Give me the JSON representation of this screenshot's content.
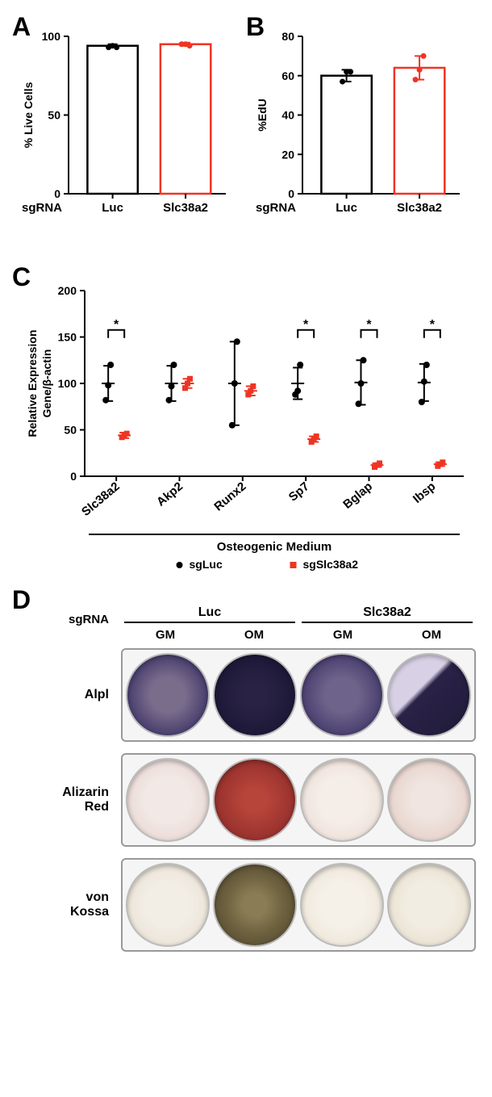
{
  "panelA": {
    "label": "A",
    "type": "bar",
    "ylabel": "% Live Cells",
    "ylim": [
      0,
      100
    ],
    "yticks": [
      0,
      50,
      100
    ],
    "categories": [
      "Luc",
      "Slc38a2"
    ],
    "xprefix": "sgRNA",
    "bars": [
      {
        "value": 94,
        "color": "#000000",
        "points": [
          93,
          94,
          93
        ],
        "err": 1
      },
      {
        "value": 95,
        "color": "#ee3524",
        "points": [
          95,
          95,
          94
        ],
        "err": 1
      }
    ],
    "bar_fill": "#ffffff",
    "tick_fontsize": 14,
    "label_fontsize": 16
  },
  "panelB": {
    "label": "B",
    "type": "bar",
    "ylabel": "%EdU",
    "ylim": [
      0,
      80
    ],
    "yticks": [
      0,
      20,
      40,
      60,
      80
    ],
    "categories": [
      "Luc",
      "Slc38a2"
    ],
    "xprefix": "sgRNA",
    "bars": [
      {
        "value": 60,
        "color": "#000000",
        "points": [
          57,
          62,
          62
        ],
        "err": 3
      },
      {
        "value": 64,
        "color": "#ee3524",
        "points": [
          58,
          63,
          70
        ],
        "err": 6
      }
    ],
    "bar_fill": "#ffffff",
    "tick_fontsize": 14,
    "label_fontsize": 16
  },
  "panelC": {
    "label": "C",
    "type": "scatter",
    "ylabel_line1": "Relative Expression",
    "ylabel_line2": "Gene/β-actin",
    "ylim": [
      0,
      200
    ],
    "yticks": [
      0,
      50,
      100,
      150,
      200
    ],
    "categories": [
      "Slc38a2",
      "Akp2",
      "Runx2",
      "Sp7",
      "Bglap",
      "Ibsp"
    ],
    "footer": "Osteogenic Medium",
    "legend": [
      {
        "label": "sgLuc",
        "marker": "circle",
        "color": "#000000"
      },
      {
        "label": "sgSlc38a2",
        "marker": "square",
        "color": "#ee3524"
      }
    ],
    "significance_pairs": [
      0,
      3,
      4,
      5
    ],
    "sig_symbol": "*",
    "data": [
      {
        "luc": {
          "points": [
            82,
            98,
            120
          ],
          "mean": 100,
          "err": 19
        },
        "slc": {
          "points": [
            42,
            44,
            46
          ],
          "mean": 44,
          "err": 3
        }
      },
      {
        "luc": {
          "points": [
            82,
            97,
            120
          ],
          "mean": 100,
          "err": 19
        },
        "slc": {
          "points": [
            95,
            100,
            105
          ],
          "mean": 100,
          "err": 5
        }
      },
      {
        "luc": {
          "points": [
            55,
            100,
            145
          ],
          "mean": 100,
          "err": 45
        },
        "slc": {
          "points": [
            88,
            92,
            97
          ],
          "mean": 92,
          "err": 5
        }
      },
      {
        "luc": {
          "points": [
            88,
            92,
            120
          ],
          "mean": 100,
          "err": 17
        },
        "slc": {
          "points": [
            37,
            40,
            43
          ],
          "mean": 40,
          "err": 3
        }
      },
      {
        "luc": {
          "points": [
            78,
            100,
            125
          ],
          "mean": 101,
          "err": 24
        },
        "slc": {
          "points": [
            10,
            12,
            14
          ],
          "mean": 12,
          "err": 2
        }
      },
      {
        "luc": {
          "points": [
            80,
            102,
            120
          ],
          "mean": 101,
          "err": 20
        },
        "slc": {
          "points": [
            11,
            13,
            15
          ],
          "mean": 13,
          "err": 2
        }
      }
    ]
  },
  "panelD": {
    "label": "D",
    "sgRNA_prefix": "sgRNA",
    "groups": [
      "Luc",
      "Slc38a2"
    ],
    "conditions": [
      "GM",
      "OM",
      "GM",
      "OM"
    ],
    "rows": [
      {
        "label": "Alpl",
        "wells": [
          "radial-gradient(circle, #7a6d8c 30%, #4a3f6e 70%, #2e2550 100%)",
          "radial-gradient(circle, #2a2245 20%, #1f1a3a 60%, #1a1530 100%)",
          "radial-gradient(circle, #6e638a 30%, #4a4070 70%, #332a55 100%)",
          "linear-gradient(135deg, #d8d0e5 0%, #d8d0e5 40%, #2a2248 45%, #1f1a38 100%)"
        ]
      },
      {
        "label": "Alizarin Red",
        "label_split": [
          "Alizarin",
          "Red"
        ],
        "wells": [
          "radial-gradient(circle, #f2e8e5 40%, #e8d8d5 80%, #d8c0bd 100%)",
          "radial-gradient(circle, #b8453a 20%, #9e3530 60%, #7a2520 100%)",
          "radial-gradient(circle, #f5ede8 40%, #ede0d8 80%, #e0cec5 100%)",
          "radial-gradient(circle, #f0e5e0 30%, #e8d5ce 70%, #c88a80 100%)"
        ]
      },
      {
        "label": "von Kossa",
        "label_split": [
          "von",
          "Kossa"
        ],
        "wells": [
          "radial-gradient(circle, #f2ede5 40%, #eae2d5 80%, #e0d5c5 100%)",
          "radial-gradient(circle, #8a7d55 20%, #6e6240 50%, #4a4028 100%)",
          "radial-gradient(circle, #f5f0e8 40%, #ede5d8 80%, #e2d8c8 100%)",
          "radial-gradient(circle, #f2ede2 40%, #e8e0d0 80%, #d8cdb8 100%)"
        ]
      }
    ]
  }
}
